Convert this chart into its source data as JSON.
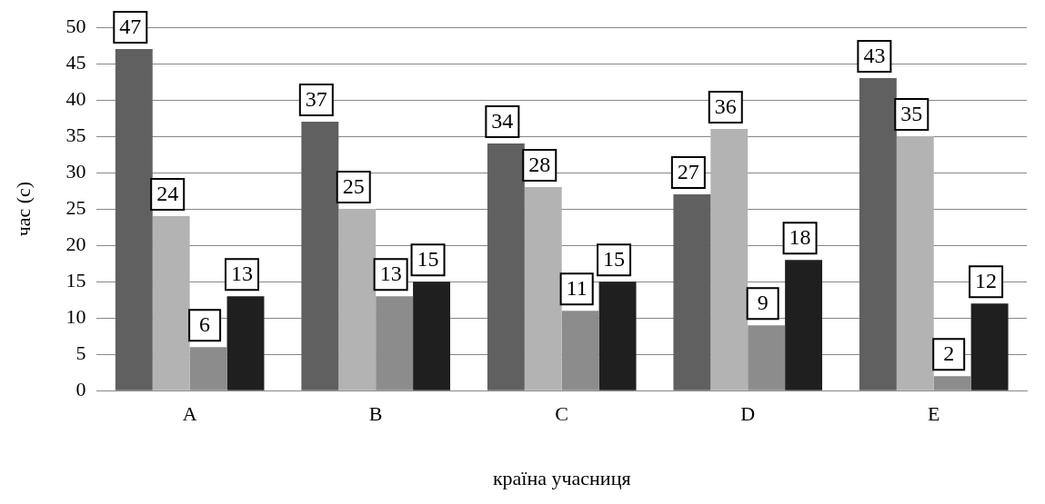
{
  "chart_data": {
    "type": "bar",
    "xlabel": "країна учасниця",
    "ylabel": "час (с)",
    "categories": [
      "A",
      "B",
      "C",
      "D",
      "E"
    ],
    "series": [
      {
        "color": "#606060",
        "values": [
          47,
          37,
          34,
          27,
          43
        ]
      },
      {
        "color": "#b3b3b3",
        "values": [
          24,
          25,
          28,
          36,
          35
        ]
      },
      {
        "color": "#8c8c8c",
        "values": [
          6,
          13,
          11,
          9,
          2
        ]
      },
      {
        "color": "#1f1f1f",
        "values": [
          13,
          15,
          15,
          18,
          12
        ]
      }
    ],
    "ylim": [
      0,
      50
    ],
    "yticks": [
      0,
      5,
      10,
      15,
      20,
      25,
      30,
      35,
      40,
      45,
      50
    ],
    "grid": "y",
    "legend": false,
    "data_labels": true
  }
}
